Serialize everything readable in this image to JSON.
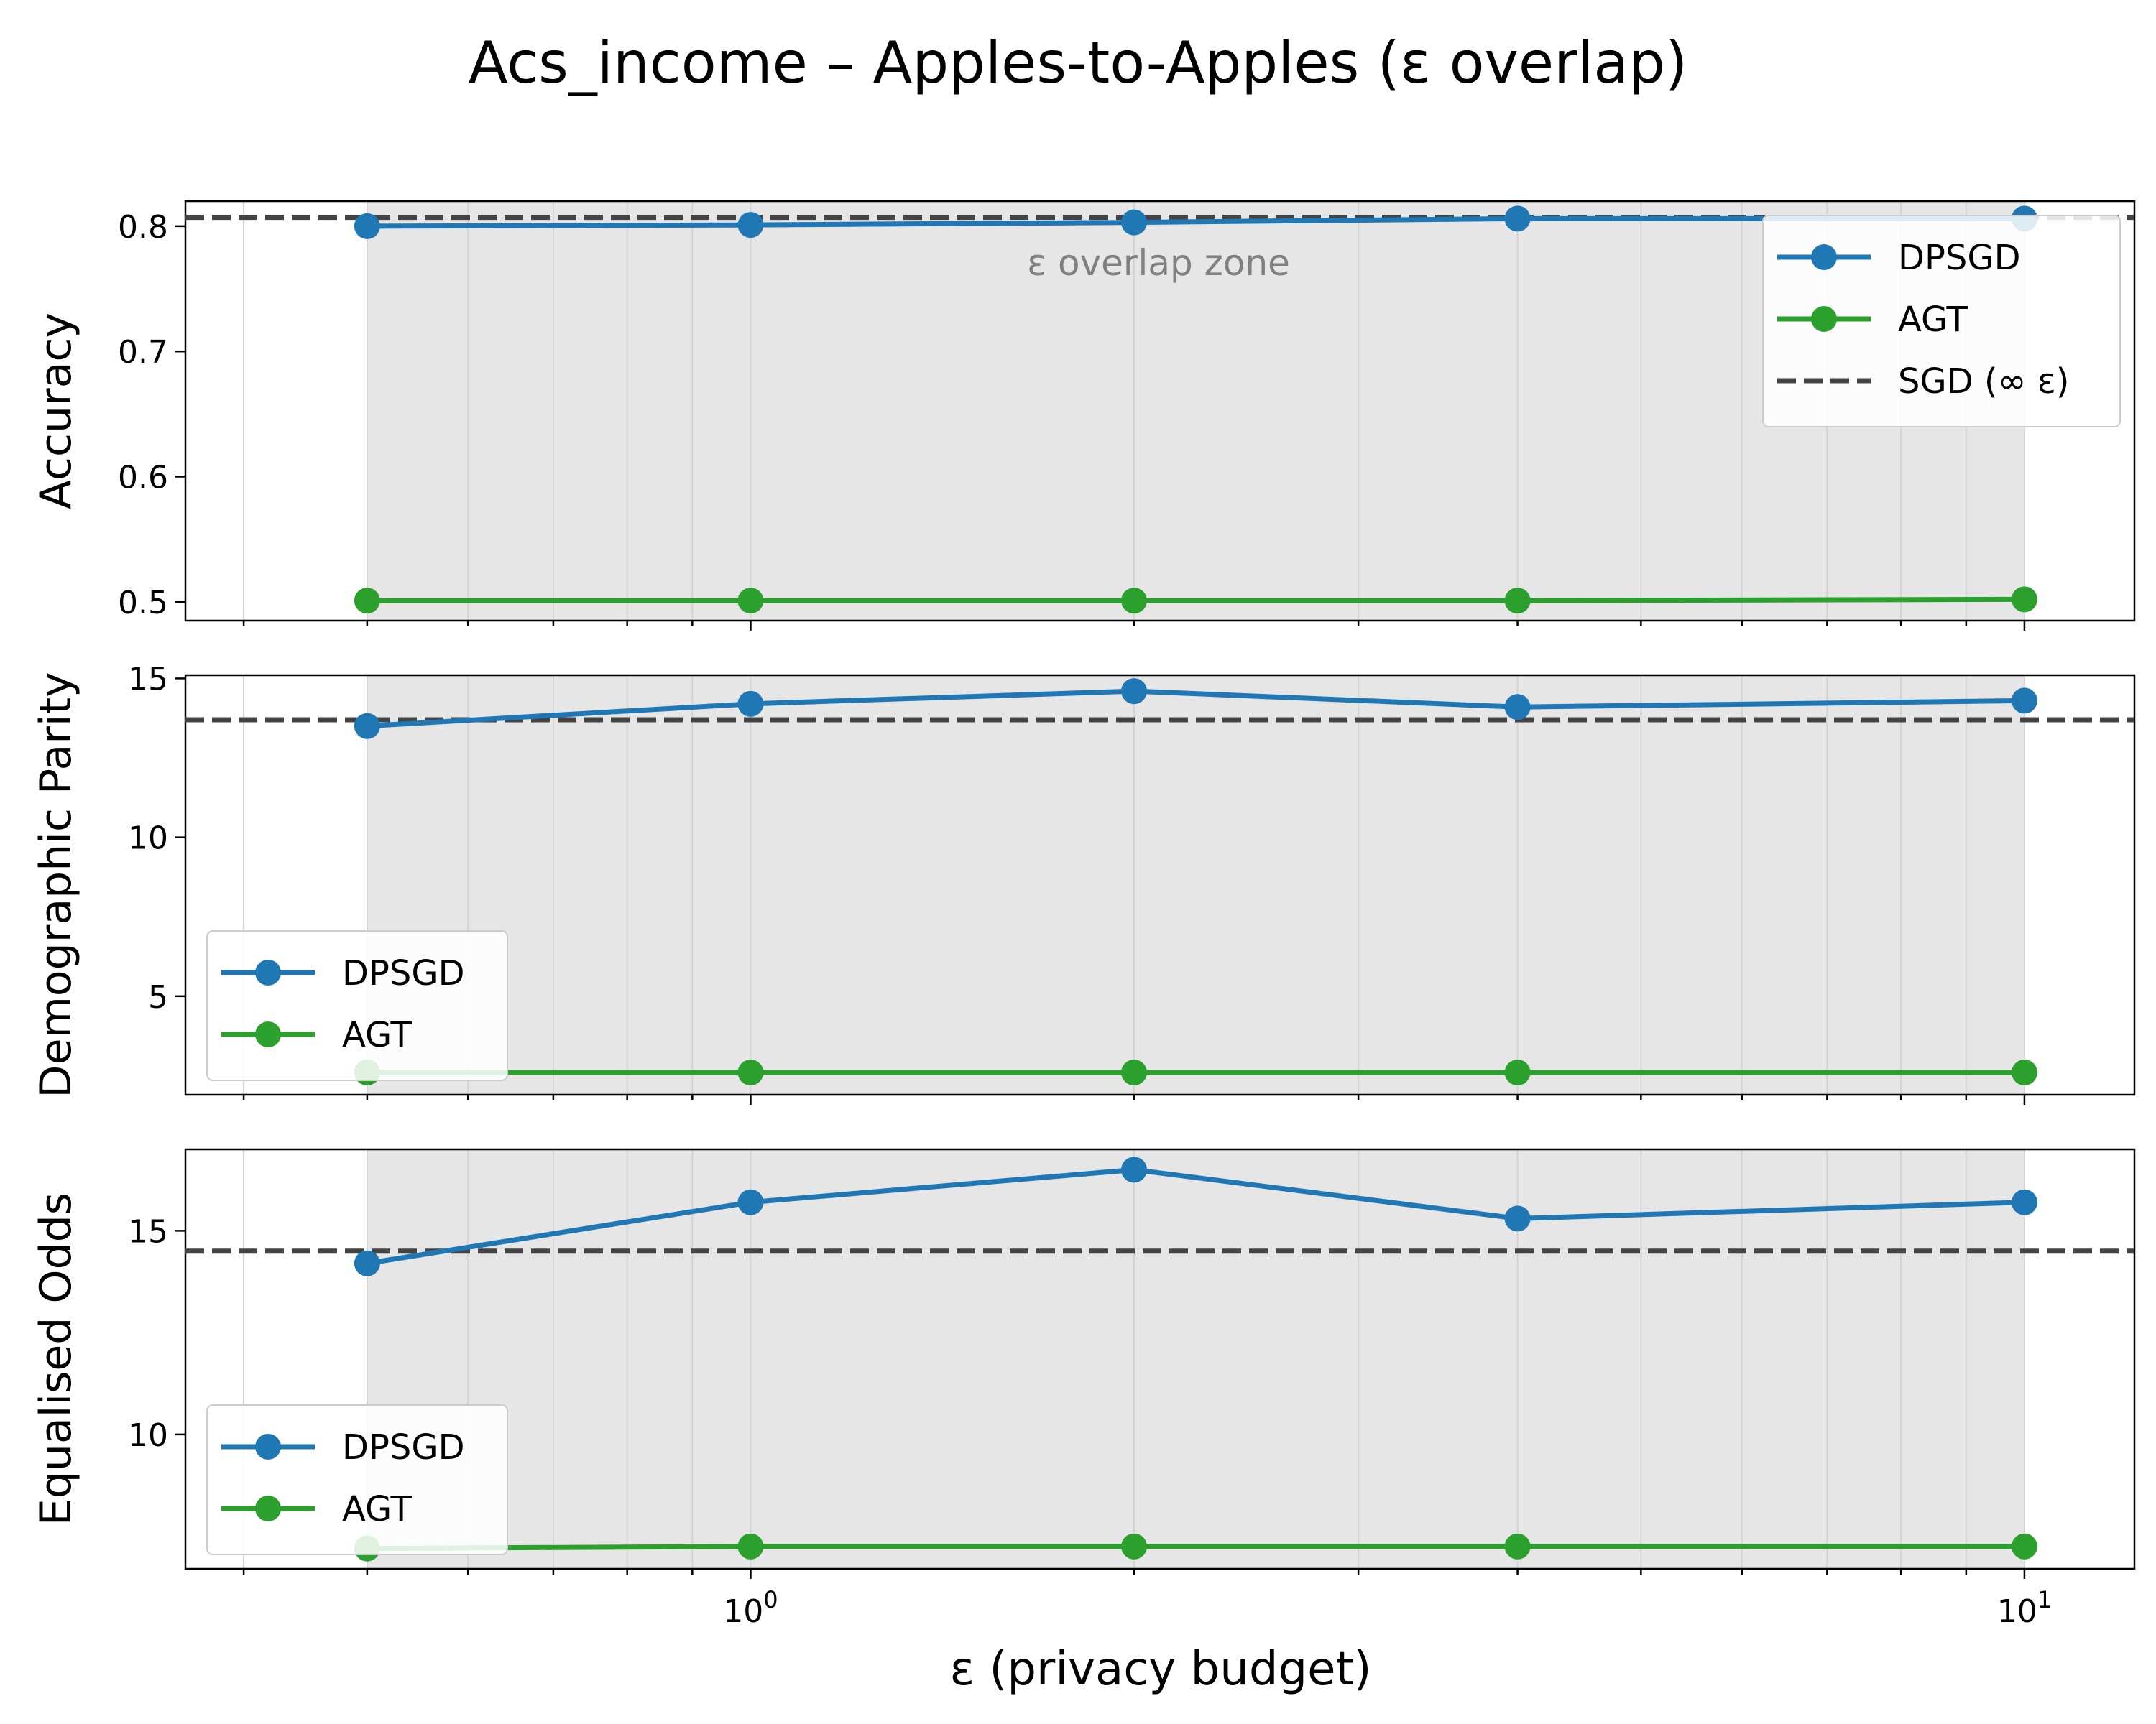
{
  "title": "Acs_income – Apples-to-Apples (ε overlap)",
  "xlabel": "ε (privacy budget)",
  "colors": {
    "dpsgd": "#1f77b4",
    "agt": "#2ca02c",
    "sgd": "#444444",
    "overlap_zone": "#e6e6e6",
    "grid": "#d3d3d3",
    "zone_label": "#808080"
  },
  "legend_labels": {
    "dpsgd": "DPSGD",
    "agt": "AGT",
    "sgd": "SGD (∞ ε)"
  },
  "overlap_zone_label": "ε overlap zone",
  "chart_data": [
    {
      "type": "line",
      "ylabel": "Accuracy",
      "xscale": "log",
      "xlim": [
        0.36,
        12.2
      ],
      "ylim": [
        0.485,
        0.82
      ],
      "x": [
        0.5,
        1,
        2,
        4,
        10
      ],
      "yticks": [
        0.5,
        0.6,
        0.7,
        0.8
      ],
      "yticklabels": [
        "0.5",
        "0.6",
        "0.7",
        "0.8"
      ],
      "overlap_zone": [
        0.5,
        10
      ],
      "series": [
        {
          "name": "DPSGD",
          "values": [
            0.8,
            0.801,
            0.803,
            0.806,
            0.806
          ]
        },
        {
          "name": "AGT",
          "values": [
            0.501,
            0.501,
            0.501,
            0.501,
            0.502
          ]
        }
      ],
      "sgd_baseline": 0.807,
      "legend": "upper-right",
      "show_sgd_in_legend": true,
      "show_zone_label": true
    },
    {
      "type": "line",
      "ylabel": "Demographic Parity",
      "xscale": "log",
      "xlim": [
        0.36,
        12.2
      ],
      "ylim": [
        1.9,
        15.1
      ],
      "x": [
        0.5,
        1,
        2,
        4,
        10
      ],
      "yticks": [
        5,
        10,
        15
      ],
      "yticklabels": [
        "5",
        "10",
        "15"
      ],
      "overlap_zone": [
        0.5,
        10
      ],
      "series": [
        {
          "name": "DPSGD",
          "values": [
            13.5,
            14.2,
            14.6,
            14.1,
            14.3
          ]
        },
        {
          "name": "AGT",
          "values": [
            2.6,
            2.6,
            2.6,
            2.6,
            2.6
          ]
        }
      ],
      "sgd_baseline": 13.7,
      "legend": "lower-left",
      "show_sgd_in_legend": false,
      "show_zone_label": false
    },
    {
      "type": "line",
      "ylabel": "Equalised Odds",
      "xscale": "log",
      "xlim": [
        0.36,
        12.2
      ],
      "ylim": [
        6.7,
        17.0
      ],
      "x": [
        0.5,
        1,
        2,
        4,
        10
      ],
      "yticks": [
        10,
        15
      ],
      "yticklabels": [
        "10",
        "15"
      ],
      "xticks": [
        1,
        10
      ],
      "xticklabels": [
        "10^0",
        "10^1"
      ],
      "overlap_zone": [
        0.5,
        10
      ],
      "series": [
        {
          "name": "DPSGD",
          "values": [
            14.2,
            15.7,
            16.5,
            15.3,
            15.7
          ]
        },
        {
          "name": "AGT",
          "values": [
            7.2,
            7.25,
            7.25,
            7.25,
            7.25
          ]
        }
      ],
      "sgd_baseline": 14.5,
      "legend": "lower-left",
      "show_sgd_in_legend": false,
      "show_zone_label": false
    }
  ]
}
